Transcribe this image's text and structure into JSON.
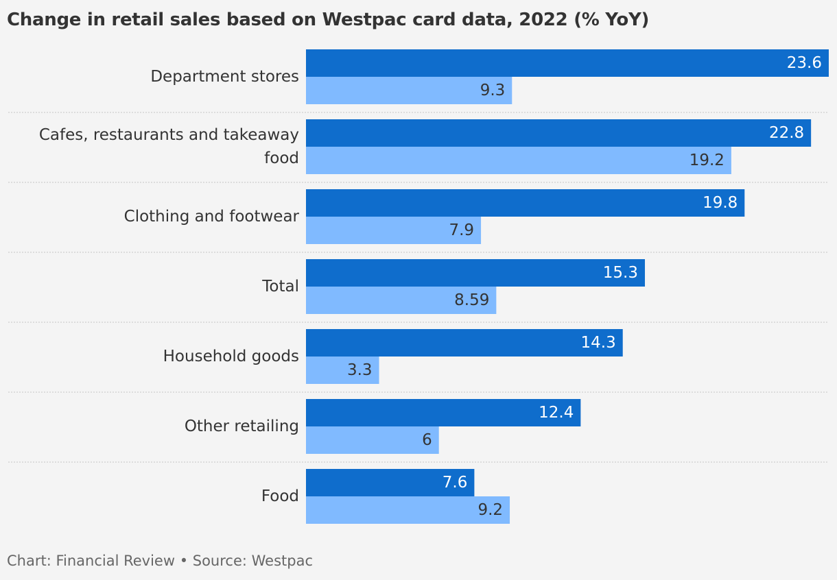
{
  "chart_data": {
    "type": "bar",
    "orientation": "horizontal",
    "title": "Change in retail sales based on Westpac card data, 2022 (% YoY)",
    "categories": [
      "Department stores",
      "Cafes, restaurants and takeaway food",
      "Clothing and footwear",
      "Total",
      "Household goods",
      "Other retailing",
      "Food"
    ],
    "series": [
      {
        "values": [
          23.6,
          22.8,
          19.8,
          15.3,
          14.3,
          12.4,
          7.6
        ],
        "labels": [
          "23.6",
          "22.8",
          "19.8",
          "15.3",
          "14.3",
          "12.4",
          "7.6"
        ],
        "color": "#0f6dcc"
      },
      {
        "values": [
          9.3,
          19.2,
          7.9,
          8.59,
          3.3,
          6,
          9.2
        ],
        "labels": [
          "9.3",
          "19.2",
          "7.9",
          "8.59",
          "3.3",
          "6",
          "9.2"
        ],
        "color": "#80baff"
      }
    ],
    "xlim": [
      0,
      23.6
    ],
    "data_labels": true,
    "grid": false
  },
  "source": "Chart: Financial Review • Source: Westpac"
}
